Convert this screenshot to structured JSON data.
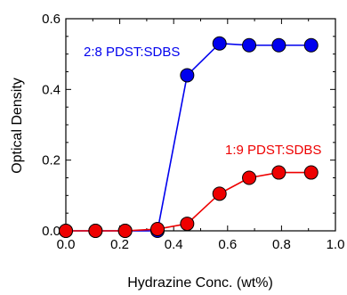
{
  "chart_data": {
    "type": "line",
    "xlabel": "Hydrazine Conc. (wt%)",
    "ylabel": "Optical Density",
    "xlim": [
      0.0,
      1.0
    ],
    "ylim": [
      0.0,
      0.6
    ],
    "xticks": [
      "0.0",
      "0.2",
      "0.4",
      "0.6",
      "0.8",
      "1.0"
    ],
    "yticks": [
      "0.0",
      "0.2",
      "0.4",
      "0.6"
    ],
    "grid": false,
    "legend": "inline series labels",
    "series": [
      {
        "name": "2:8 PDST:SDBS",
        "color": "#0000ee",
        "x": [
          0.0,
          0.11,
          0.22,
          0.34,
          0.45,
          0.57,
          0.68,
          0.79,
          0.91
        ],
        "y": [
          0.0,
          0.0,
          0.0,
          0.0,
          0.44,
          0.53,
          0.525,
          0.525,
          0.525
        ]
      },
      {
        "name": "1:9 PDST:SDBS",
        "color": "#ee0000",
        "x": [
          0.0,
          0.11,
          0.22,
          0.34,
          0.45,
          0.57,
          0.68,
          0.79,
          0.91
        ],
        "y": [
          0.0,
          0.0,
          0.0,
          0.005,
          0.02,
          0.105,
          0.15,
          0.165,
          0.165
        ]
      }
    ]
  }
}
